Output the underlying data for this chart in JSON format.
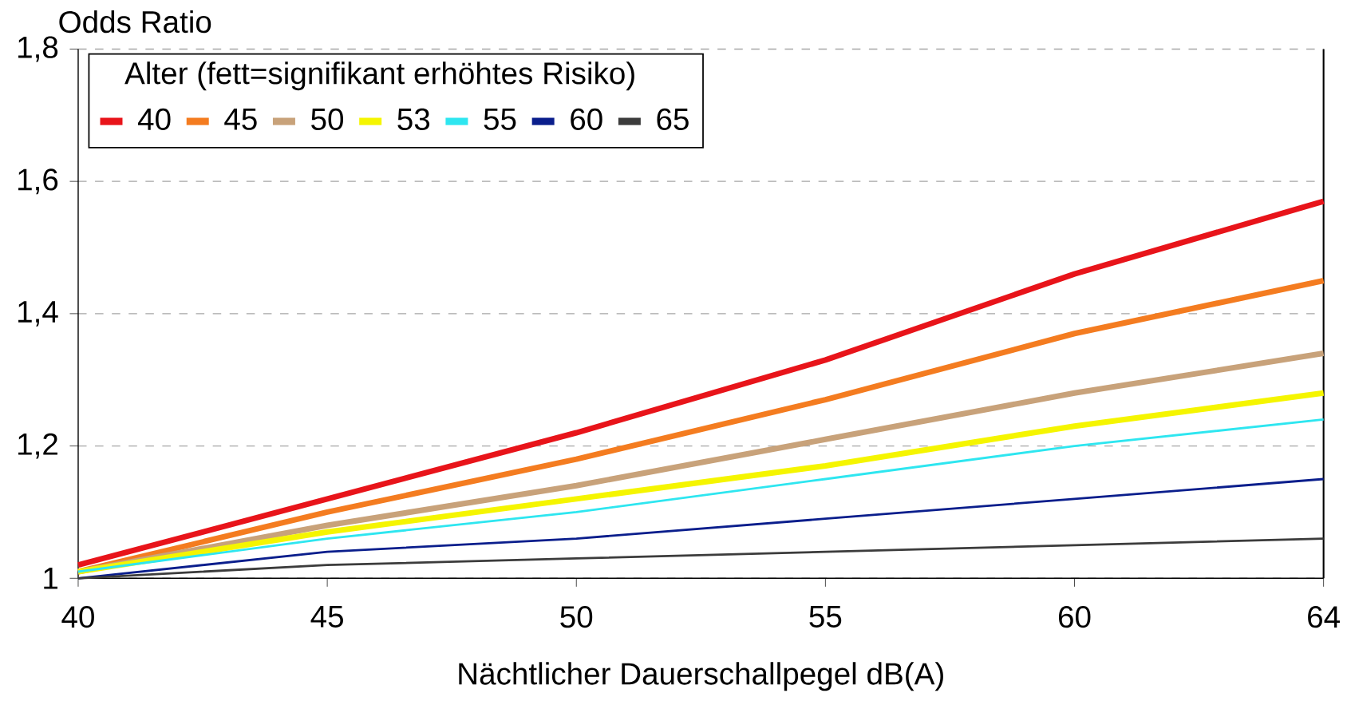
{
  "chart_data": {
    "type": "line",
    "xlabel": "Nächtlicher Dauerschallpegel  dB(A)",
    "ylabel": "Odds Ratio",
    "legend_title": "Alter (fett=signifikant erhöhtes Risiko)",
    "legend": "top left",
    "grid": "y",
    "line_style": "solid",
    "marker": "none",
    "categories": [
      "40",
      "45",
      "50",
      "55",
      "60",
      "64"
    ],
    "ylim": [
      1,
      1.8
    ],
    "yticks": [
      1,
      {
        "value": 1.2,
        "label": "1,2"
      },
      {
        "value": 1.4,
        "label": "1,4"
      },
      {
        "value": 1.6,
        "label": "1,6"
      },
      {
        "value": 1.8,
        "label": "1,8"
      }
    ],
    "series": [
      {
        "name": "40",
        "color": "#e8141a",
        "values": [
          1.02,
          1.12,
          1.22,
          1.33,
          1.46,
          1.57
        ]
      },
      {
        "name": "45",
        "color": "#f47c20",
        "values": [
          1.01,
          1.1,
          1.18,
          1.27,
          1.37,
          1.45
        ]
      },
      {
        "name": "50",
        "color": "#c8a27a",
        "values": [
          1.01,
          1.08,
          1.14,
          1.21,
          1.28,
          1.34
        ]
      },
      {
        "name": "53",
        "color": "#f5f500",
        "values": [
          1.01,
          1.07,
          1.12,
          1.17,
          1.23,
          1.28
        ]
      },
      {
        "name": "55",
        "color": "#2ee6f0",
        "values": [
          1.01,
          1.06,
          1.1,
          1.15,
          1.2,
          1.24
        ]
      },
      {
        "name": "60",
        "color": "#0a1e8c",
        "values": [
          1.0,
          1.04,
          1.06,
          1.09,
          1.12,
          1.15
        ]
      },
      {
        "name": "65",
        "color": "#3c3c3c",
        "values": [
          1.0,
          1.02,
          1.03,
          1.04,
          1.05,
          1.06
        ]
      }
    ]
  }
}
